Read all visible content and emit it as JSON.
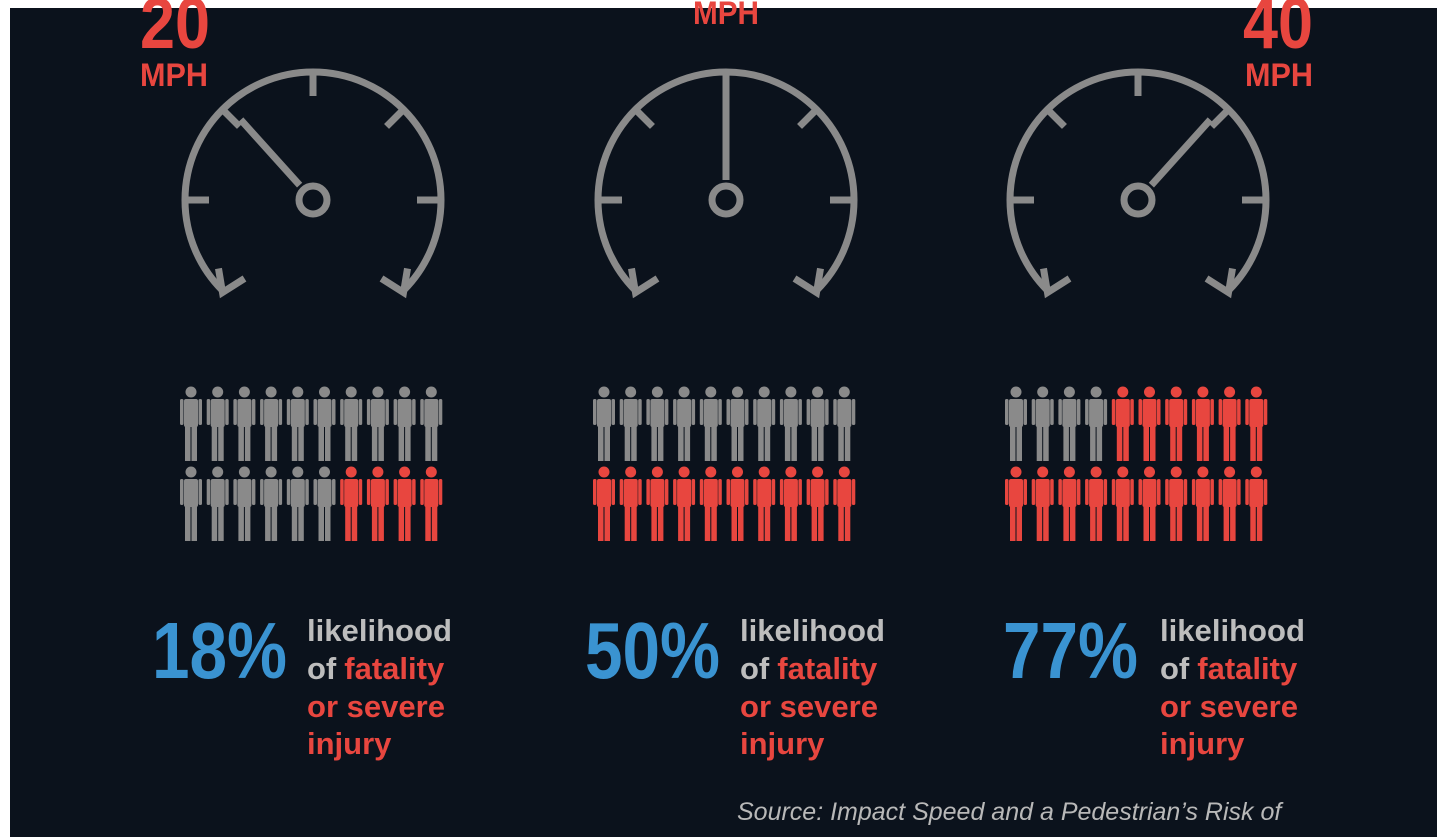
{
  "panels": [
    {
      "speed": "20",
      "unit": "MPH",
      "needle_angle": -42,
      "icons": {
        "total": 20,
        "highlighted": 4
      },
      "percent": "18%",
      "lines": [
        "likelihood",
        "of",
        "fatality",
        "or severe",
        "injury"
      ]
    },
    {
      "unit": "MPH",
      "needle_angle": 0,
      "icons": {
        "total": 20,
        "highlighted": 10
      },
      "percent": "50%",
      "lines": [
        "likelihood",
        "of",
        "fatality",
        "or severe",
        "injury"
      ]
    },
    {
      "speed": "40",
      "unit": "MPH",
      "needle_angle": 42,
      "icons": {
        "total": 20,
        "highlighted": 16
      },
      "percent": "77%",
      "lines": [
        "likelihood",
        "of",
        "fatality",
        "or severe",
        "injury"
      ]
    }
  ],
  "source": "Source: Impact Speed and a Pedestrian’s Risk of"
}
